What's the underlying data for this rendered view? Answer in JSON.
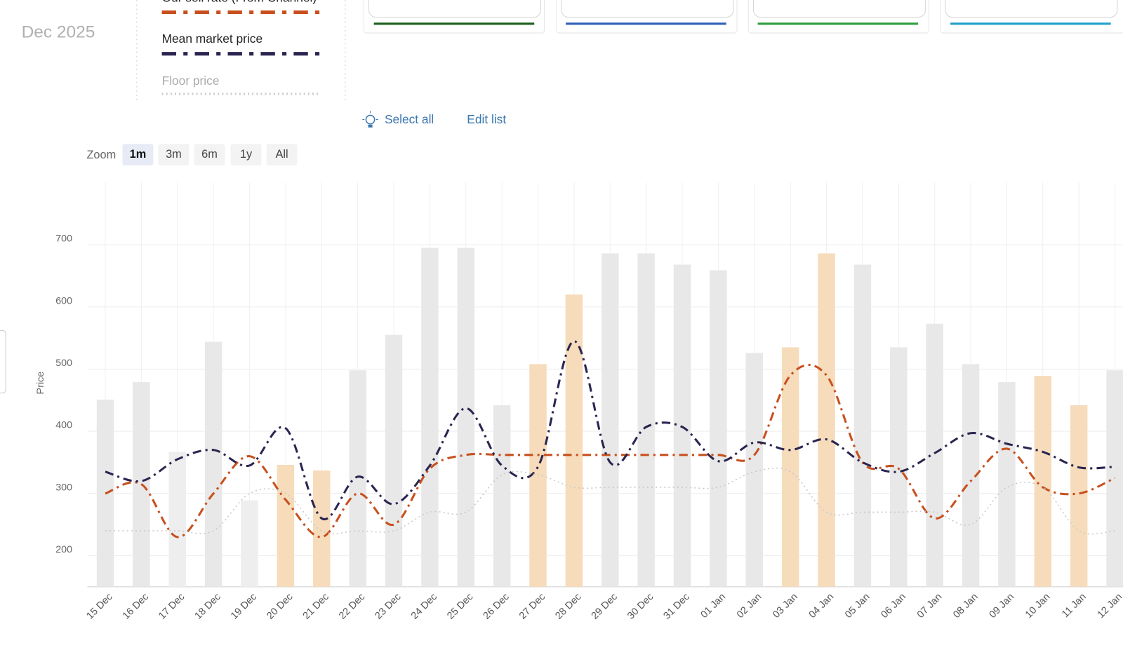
{
  "header": {
    "month": "Dec 2025"
  },
  "toolbar": {
    "select_all": "Select all",
    "edit_list": "Edit list"
  },
  "zoom": {
    "label": "Zoom",
    "options": [
      "1m",
      "3m",
      "6m",
      "1y",
      "All"
    ],
    "selected": "1m"
  },
  "chart_data": {
    "type": "bar",
    "ylabel": "Price",
    "categories": [
      "15 Dec",
      "16 Dec",
      "17 Dec",
      "18 Dec",
      "19 Dec",
      "20 Dec",
      "21 Dec",
      "22 Dec",
      "23 Dec",
      "24 Dec",
      "25 Dec",
      "26 Dec",
      "27 Dec",
      "28 Dec",
      "29 Dec",
      "30 Dec",
      "31 Dec",
      "01 Jan",
      "02 Jan",
      "03 Jan",
      "04 Jan",
      "05 Jan",
      "06 Jan",
      "07 Jan",
      "08 Jan",
      "09 Jan",
      "10 Jan",
      "11 Jan",
      "12 Jan"
    ],
    "bars": {
      "values": [
        451,
        479,
        367,
        544,
        289,
        346,
        337,
        498,
        555,
        695,
        695,
        442,
        508,
        620,
        686,
        686,
        668,
        659,
        526,
        535,
        686,
        668,
        535,
        573,
        508,
        479,
        489,
        442,
        498
      ],
      "colors": [
        "#e8e8e8",
        "#e8e8e8",
        "#eeeeee",
        "#e8e8e8",
        "#eeeeee",
        "#f6dcbb",
        "#f6dcbb",
        "#e8e8e8",
        "#e8e8e8",
        "#e8e8e8",
        "#e8e8e8",
        "#e8e8e8",
        "#f6dcbb",
        "#f6dcbb",
        "#e8e8e8",
        "#e8e8e8",
        "#e8e8e8",
        "#e8e8e8",
        "#e8e8e8",
        "#f6dcbb",
        "#f6dcbb",
        "#e8e8e8",
        "#e8e8e8",
        "#e8e8e8",
        "#e8e8e8",
        "#e8e8e8",
        "#f6dcbb",
        "#f6dcbb",
        "#e8e8e8"
      ]
    },
    "series": [
      {
        "name": "Our sell rate (From Channel)",
        "color": "#c8501e",
        "style": "dashdot",
        "values": [
          300,
          315,
          230,
          300,
          360,
          290,
          230,
          300,
          250,
          340,
          362,
          362,
          362,
          362,
          362,
          362,
          362,
          362,
          362,
          490,
          490,
          350,
          340,
          260,
          320,
          372,
          310,
          300,
          325
        ]
      },
      {
        "name": "Mean market price",
        "color": "#2a2550",
        "style": "dashdot",
        "values": [
          335,
          320,
          355,
          370,
          345,
          405,
          260,
          327,
          283,
          345,
          437,
          345,
          343,
          545,
          350,
          407,
          407,
          352,
          382,
          370,
          387,
          350,
          335,
          365,
          397,
          380,
          367,
          342,
          343
        ]
      },
      {
        "name": "Floor price",
        "color": "#c8c8c8",
        "style": "dotted",
        "values": [
          240,
          240,
          240,
          240,
          300,
          300,
          240,
          240,
          240,
          270,
          270,
          330,
          330,
          310,
          310,
          310,
          310,
          310,
          335,
          335,
          270,
          270,
          270,
          270,
          250,
          310,
          310,
          240,
          240
        ]
      }
    ],
    "ylim": [
      150,
      800
    ],
    "yticks": [
      200,
      300,
      400,
      500,
      600,
      700
    ],
    "grid": true
  }
}
